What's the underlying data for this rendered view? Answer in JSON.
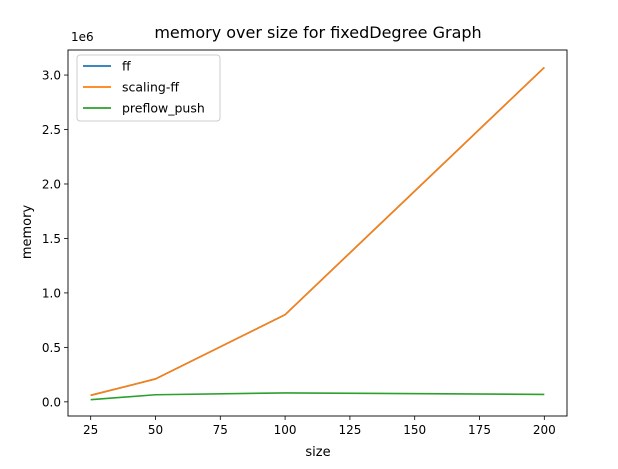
{
  "chart_data": {
    "type": "line",
    "title": "memory over size for fixedDegree Graph",
    "xlabel": "size",
    "ylabel": "memory",
    "y_offset_label": "1e6",
    "x": [
      25,
      50,
      100,
      200
    ],
    "xlim": [
      16.25,
      208.75
    ],
    "ylim": [
      -130000,
      3230000
    ],
    "xticks": [
      25,
      50,
      75,
      100,
      125,
      150,
      175,
      200
    ],
    "yticks": [
      0,
      500000,
      1000000,
      1500000,
      2000000,
      2500000,
      3000000
    ],
    "ytick_labels": [
      "0.0",
      "0.5",
      "1.0",
      "1.5",
      "2.0",
      "2.5",
      "3.0"
    ],
    "series": [
      {
        "name": "ff",
        "color": "#1f77b4",
        "values": [
          60000,
          210000,
          800000,
          3070000
        ]
      },
      {
        "name": "scaling-ff",
        "color": "#ff7f0e",
        "values": [
          60000,
          210000,
          800000,
          3070000
        ]
      },
      {
        "name": "preflow_push",
        "color": "#2ca02c",
        "values": [
          20000,
          65000,
          82000,
          68000
        ]
      }
    ],
    "legend_position": "upper left",
    "grid": false
  }
}
